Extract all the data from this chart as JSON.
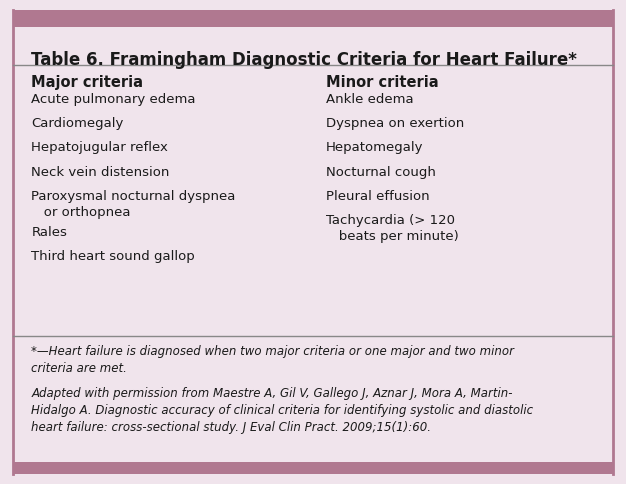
{
  "title": "Table 6. Framingham Diagnostic Criteria for Heart Failure*",
  "background_color": "#f0e4ec",
  "border_color": "#b07890",
  "top_bar_color": "#b07890",
  "bottom_bar_color": "#b07890",
  "text_color": "#1a1a1a",
  "line_color": "#888888",
  "col1_header": "Major criteria",
  "col1_items": [
    "Acute pulmonary edema",
    "Cardiomegaly",
    "Hepatojugular reflex",
    "Neck vein distension",
    "Paroxysmal nocturnal dyspnea\n   or orthopnea",
    "Rales",
    "Third heart sound gallop"
  ],
  "col2_header": "Minor criteria",
  "col2_items": [
    "Ankle edema",
    "Dyspnea on exertion",
    "Hepatomegaly",
    "Nocturnal cough",
    "Pleural effusion",
    "Tachycardia (> 120\n   beats per minute)"
  ],
  "footnote1": "*—Heart failure is diagnosed when two major criteria or one major and two minor\ncriteria are met.",
  "footnote2": "Adapted with permission from Maestre A, Gil V, Gallego J, Aznar J, Mora A, Martin-\nHidalgo A. Diagnostic accuracy of clinical criteria for identifying systolic and diastolic\nheart failure: cross-sectional study. J Eval Clin Pract. 2009;15(1):60.",
  "figsize": [
    6.26,
    4.84
  ],
  "dpi": 100
}
